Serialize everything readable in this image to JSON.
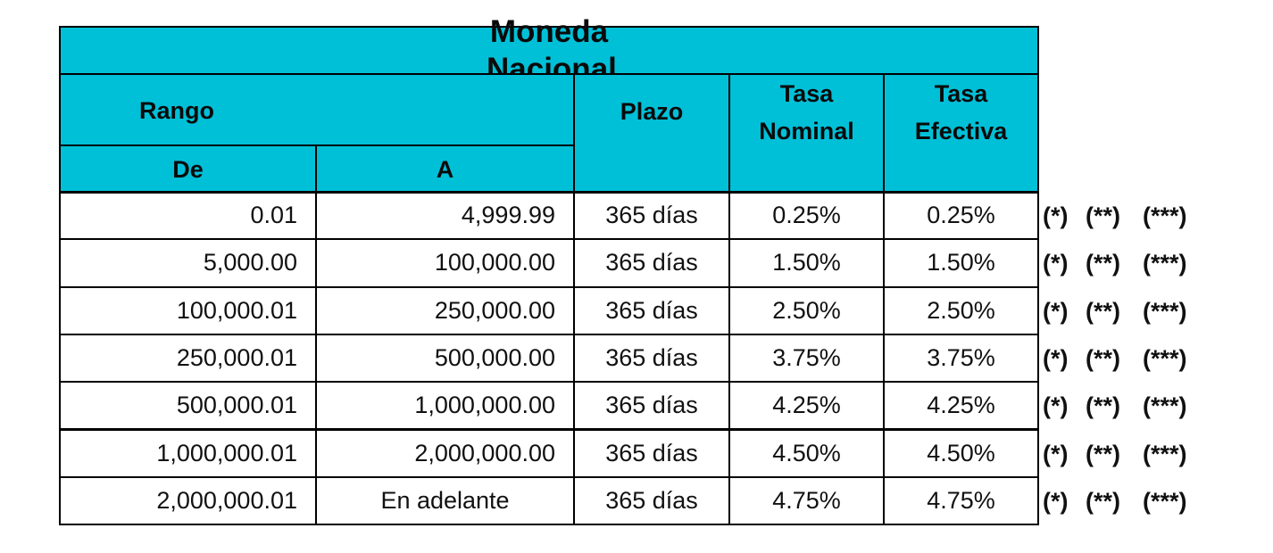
{
  "table": {
    "title": "Moneda Nacional",
    "headers": {
      "rango": "Rango",
      "de": "De",
      "a": "A",
      "plazo": "Plazo",
      "tasa_nominal": "Tasa Nominal",
      "tasa_efectiva": "Tasa Efectiva"
    },
    "rows": [
      {
        "cells": [
          "0.01",
          "4,999.99",
          "365 días",
          "0.25%",
          "0.25%"
        ],
        "notes": [
          "(*)",
          "(**)",
          "(***)"
        ]
      },
      {
        "cells": [
          "5,000.00",
          "100,000.00",
          "365 días",
          "1.50%",
          "1.50%"
        ],
        "notes": [
          "(*)",
          "(**)",
          "(***)"
        ]
      },
      {
        "cells": [
          "100,000.01",
          "250,000.00",
          "365 días",
          "2.50%",
          "2.50%"
        ],
        "notes": [
          "(*)",
          "(**)",
          "(***)"
        ]
      },
      {
        "cells": [
          "250,000.01",
          "500,000.00",
          "365 días",
          "3.75%",
          "3.75%"
        ],
        "notes": [
          "(*)",
          "(**)",
          "(***)"
        ]
      },
      {
        "cells": [
          "500,000.01",
          "1,000,000.00",
          "365 días",
          "4.25%",
          "4.25%"
        ],
        "notes": [
          "(*)",
          "(**)",
          "(***)"
        ]
      },
      {
        "cells": [
          "1,000,000.01",
          "2,000,000.00",
          "365 días",
          "4.50%",
          "4.50%"
        ],
        "notes": [
          "(*)",
          "(**)",
          "(***)"
        ]
      },
      {
        "cells": [
          "2,000,000.01",
          "En adelante",
          "365 días",
          "4.75%",
          "4.75%"
        ],
        "notes": [
          "(*)",
          "(**)",
          "(***)"
        ]
      }
    ]
  }
}
